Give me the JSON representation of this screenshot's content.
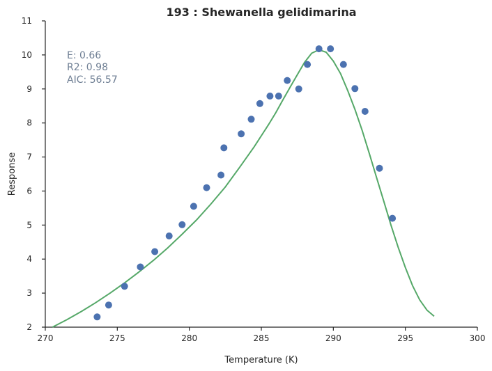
{
  "chart_data": {
    "type": "scatter",
    "title": "193 : Shewanella gelidimarina",
    "xlabel": "Temperature (K)",
    "ylabel": "Response",
    "xlim": [
      270,
      300
    ],
    "ylim": [
      2,
      11
    ],
    "xticks": [
      270,
      275,
      280,
      285,
      290,
      295,
      300
    ],
    "yticks": [
      2,
      3,
      4,
      5,
      6,
      7,
      8,
      9,
      10,
      11
    ],
    "grid": false,
    "annotations": [
      "E:  0.66",
      "R2:  0.98",
      "AIC: 56.57"
    ],
    "colors": {
      "points": "#4c72b0",
      "fit": "#55a868",
      "annotation": "#6f7f94",
      "axis": "#262626"
    },
    "series": [
      {
        "type": "scatter",
        "x": [
          273.6,
          274.4,
          275.5,
          276.6,
          277.6,
          278.6,
          279.5,
          280.3,
          281.2,
          282.2,
          282.4,
          283.6,
          284.3,
          284.9,
          285.6,
          286.2,
          286.8,
          287.6,
          288.2,
          289.0,
          289.8,
          290.7,
          291.5,
          292.2,
          293.2,
          294.1
        ],
        "y": [
          2.3,
          2.65,
          3.2,
          3.77,
          4.22,
          4.68,
          5.01,
          5.55,
          6.1,
          6.47,
          7.27,
          7.68,
          8.11,
          8.57,
          8.79,
          8.79,
          9.25,
          9.0,
          9.72,
          10.18,
          10.18,
          9.72,
          9.01,
          8.34,
          6.67,
          5.2
        ]
      },
      {
        "type": "line",
        "x": [
          270.5,
          271.5,
          272.5,
          273.5,
          274.5,
          275.5,
          276.5,
          277.5,
          278.5,
          279.5,
          280.5,
          281.5,
          282.5,
          283.5,
          284.5,
          285.5,
          286.0,
          286.5,
          287.0,
          287.5,
          288.0,
          288.5,
          289.0,
          289.5,
          290.0,
          290.5,
          291.0,
          291.5,
          292.0,
          292.5,
          293.0,
          293.5,
          294.0,
          294.5,
          295.0,
          295.5,
          296.0,
          296.5,
          297.0
        ],
        "y": [
          2.0,
          2.22,
          2.46,
          2.72,
          3.0,
          3.3,
          3.62,
          3.96,
          4.33,
          4.73,
          5.15,
          5.62,
          6.12,
          6.7,
          7.3,
          7.95,
          8.3,
          8.68,
          9.05,
          9.42,
          9.78,
          10.05,
          10.15,
          10.08,
          9.82,
          9.45,
          8.95,
          8.4,
          7.78,
          7.1,
          6.4,
          5.7,
          5.0,
          4.35,
          3.75,
          3.22,
          2.8,
          2.5,
          2.32
        ]
      }
    ]
  }
}
